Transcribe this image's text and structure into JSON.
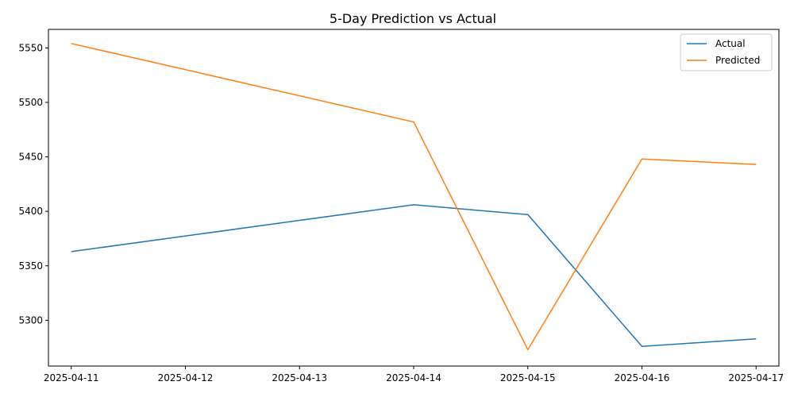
{
  "chart_data": {
    "type": "line",
    "title": "5-Day Prediction vs Actual",
    "xlabel": "",
    "ylabel": "",
    "x_ticks": [
      "2025-04-11",
      "2025-04-12",
      "2025-04-13",
      "2025-04-14",
      "2025-04-15",
      "2025-04-16",
      "2025-04-17"
    ],
    "y_ticks": [
      5300,
      5350,
      5400,
      5450,
      5500,
      5550
    ],
    "xlim": [
      "2025-04-10T19:12",
      "2025-04-17T04:48"
    ],
    "ylim": [
      5258,
      5567
    ],
    "grid": false,
    "legend": "top-right",
    "series": [
      {
        "name": "Actual",
        "color": "#1f77b4",
        "x": [
          "2025-04-11",
          "2025-04-14",
          "2025-04-15",
          "2025-04-16",
          "2025-04-17"
        ],
        "y": [
          5363,
          5406,
          5397,
          5276,
          5283
        ]
      },
      {
        "name": "Predicted",
        "color": "#ff7f0e",
        "x": [
          "2025-04-11",
          "2025-04-14",
          "2025-04-15",
          "2025-04-16",
          "2025-04-17"
        ],
        "y": [
          5554,
          5482,
          5273,
          5448,
          5443
        ]
      }
    ]
  }
}
